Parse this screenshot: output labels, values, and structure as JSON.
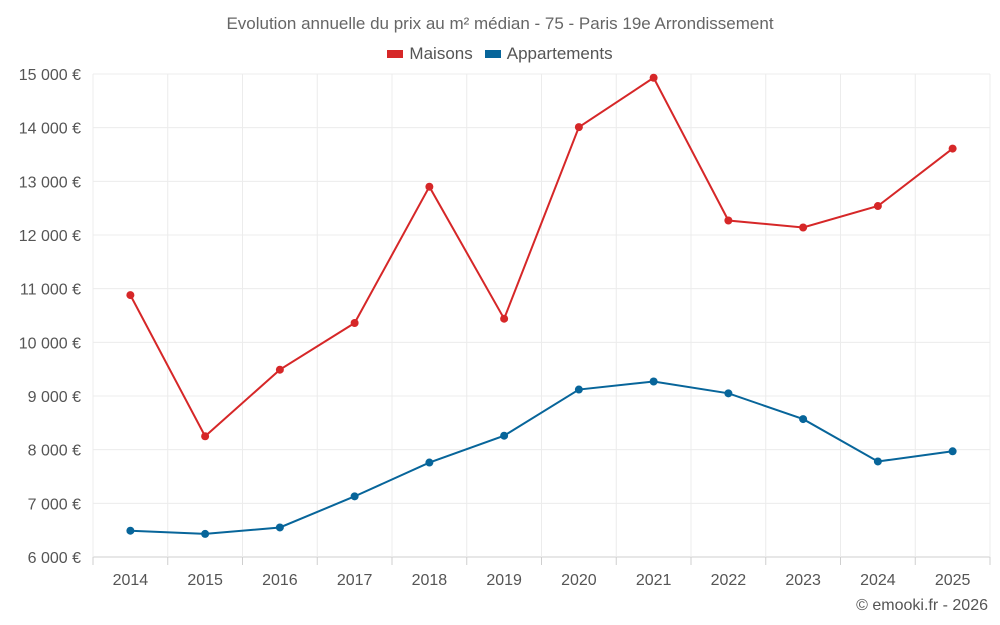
{
  "chart_data": {
    "type": "line",
    "title": "Evolution annuelle du prix au m² médian - 75 - Paris 19e Arrondissement",
    "categories": [
      "2014",
      "2015",
      "2016",
      "2017",
      "2018",
      "2019",
      "2020",
      "2021",
      "2022",
      "2023",
      "2024",
      "2025"
    ],
    "series": [
      {
        "name": "Maisons",
        "color": "#d62728",
        "values": [
          10880,
          8250,
          9490,
          10360,
          12900,
          10440,
          14010,
          14930,
          12270,
          12140,
          12540,
          13610
        ]
      },
      {
        "name": "Appartements",
        "color": "#07659a",
        "values": [
          6490,
          6430,
          6550,
          7130,
          7760,
          8260,
          9120,
          9270,
          9050,
          8570,
          7780,
          7970
        ]
      }
    ],
    "ylim": [
      6000,
      15000
    ],
    "yticks": [
      6000,
      7000,
      8000,
      9000,
      10000,
      11000,
      12000,
      13000,
      14000,
      15000
    ],
    "ytick_labels": [
      "6 000 €",
      "7 000 €",
      "8 000 €",
      "9 000 €",
      "10 000 €",
      "11 000 €",
      "12 000 €",
      "13 000 €",
      "14 000 €",
      "15 000 €"
    ],
    "xlabel": "",
    "ylabel": "",
    "grid": true,
    "legend_position": "top-center"
  },
  "footer": {
    "copyright": "© emooki.fr - 2026"
  }
}
